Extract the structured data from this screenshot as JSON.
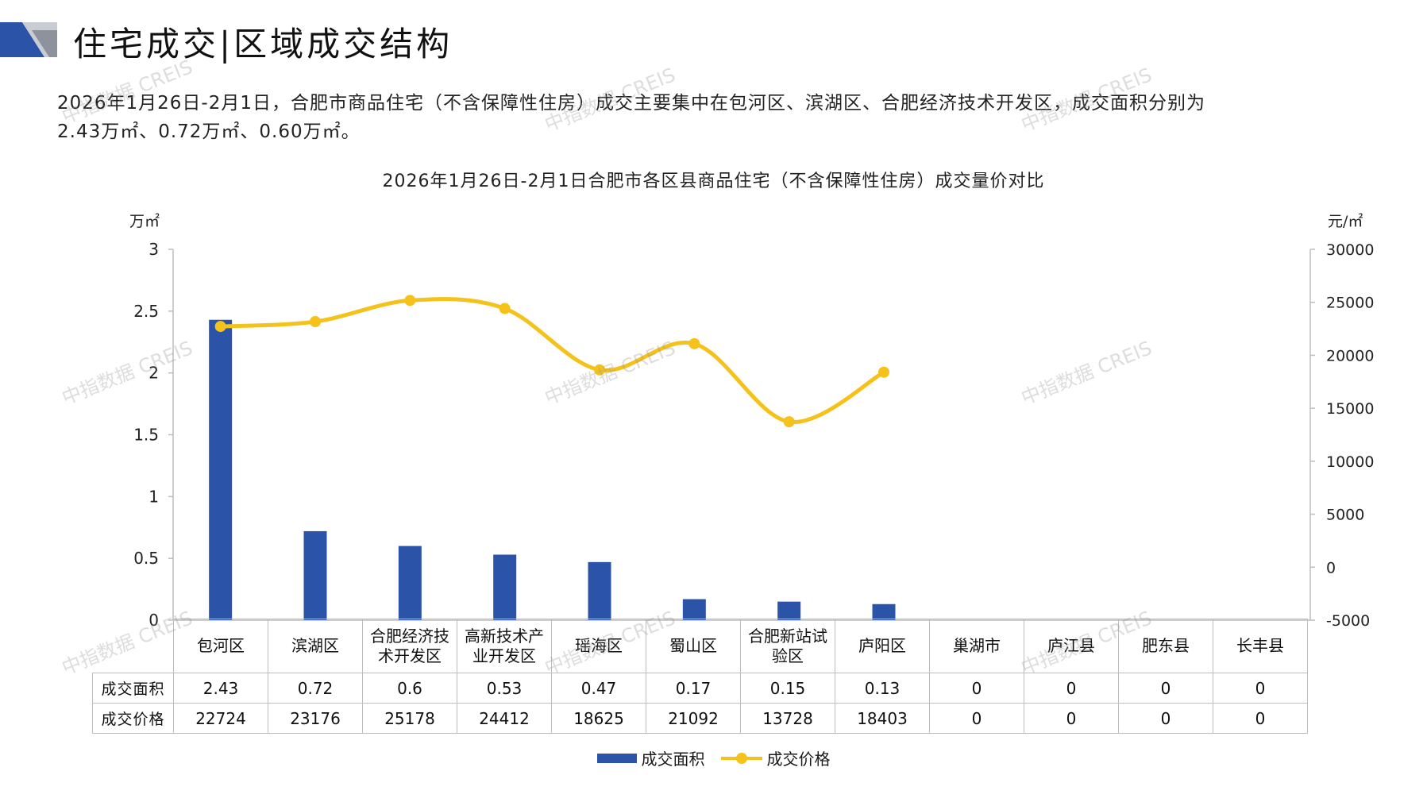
{
  "header": {
    "title": "住宅成交|区域成交结构",
    "summary_line1": "2026年1月26日-2月1日，合肥市商品住宅（不含保障性住房）成交主要集中在包河区、滨湖区、合肥经济技术开发区，成交面积分别为",
    "summary_line2": "2.43万㎡、0.72万㎡、0.60万㎡。"
  },
  "chart_data": {
    "type": "bar+line",
    "title": "2026年1月26日-2月1日合肥市各区县商品住宅（不含保障性住房）成交量价对比",
    "y_left_label": "万㎡",
    "y_right_label": "元/㎡",
    "y_left_ticks": [
      "3",
      "2.5",
      "2",
      "1.5",
      "1",
      "0.5",
      "0"
    ],
    "y_right_ticks": [
      "30000",
      "25000",
      "20000",
      "15000",
      "10000",
      "5000",
      "0",
      "-5000"
    ],
    "y_left_lim": [
      0,
      3
    ],
    "y_right_lim": [
      -5000,
      30000
    ],
    "categories": [
      [
        "包河区"
      ],
      [
        "滨湖区"
      ],
      [
        "合肥经济技",
        "术开发区"
      ],
      [
        "高新技术产",
        "业开发区"
      ],
      [
        "瑶海区"
      ],
      [
        "蜀山区"
      ],
      [
        "合肥新站试",
        "验区"
      ],
      [
        "庐阳区"
      ],
      [
        "巢湖市"
      ],
      [
        "庐江县"
      ],
      [
        "肥东县"
      ],
      [
        "长丰县"
      ]
    ],
    "series": [
      {
        "name": "成交面积",
        "type": "bar",
        "axis": "left",
        "color": "#2b54a8",
        "labels": [
          "2.43",
          "0.72",
          "0.6",
          "0.53",
          "0.47",
          "0.17",
          "0.15",
          "0.13",
          "0",
          "0",
          "0",
          "0"
        ],
        "values": [
          2.43,
          0.72,
          0.6,
          0.53,
          0.47,
          0.17,
          0.15,
          0.13,
          0,
          0,
          0,
          0
        ]
      },
      {
        "name": "成交价格",
        "type": "line",
        "axis": "right",
        "color": "#f5c21b",
        "labels": [
          "22724",
          "23176",
          "25178",
          "24412",
          "18625",
          "21092",
          "13728",
          "18403",
          "0",
          "0",
          "0",
          "0"
        ],
        "values": [
          22724,
          23176,
          25178,
          24412,
          18625,
          21092,
          13728,
          18403,
          0,
          0,
          0,
          0
        ],
        "plotted_points": 8
      }
    ],
    "legend_position": "bottom"
  },
  "watermark": "中指数据 CREIS"
}
